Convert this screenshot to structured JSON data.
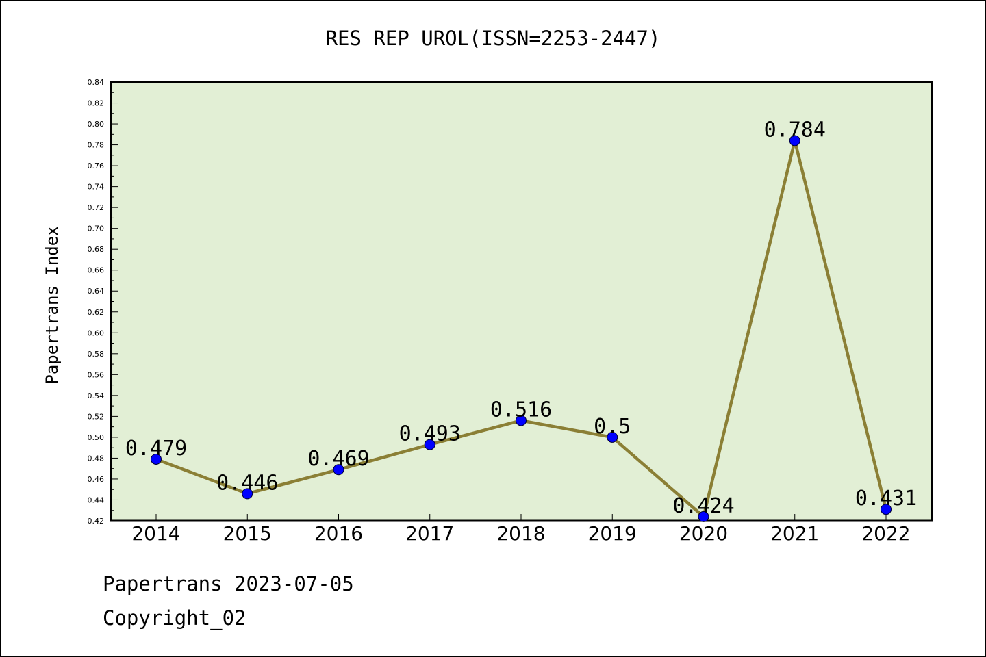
{
  "chart_data": {
    "type": "line",
    "title": "RES REP UROL(ISSN=2253-2447)",
    "ylabel": "Papertrans Index",
    "xlabel": "",
    "categories": [
      "2014",
      "2015",
      "2016",
      "2017",
      "2018",
      "2019",
      "2020",
      "2021",
      "2022"
    ],
    "values": [
      0.479,
      0.446,
      0.469,
      0.493,
      0.516,
      0.5,
      0.424,
      0.784,
      0.431
    ],
    "value_labels": [
      "0.479",
      "0.446",
      "0.469",
      "0.493",
      "0.516",
      "0.5",
      "0.424",
      "0.784",
      "0.431"
    ],
    "ylim": [
      0.42,
      0.84
    ],
    "yticks": [
      "0.42",
      "0.44",
      "0.46",
      "0.48",
      "0.50",
      "0.52",
      "0.54",
      "0.56",
      "0.58",
      "0.60",
      "0.62",
      "0.64",
      "0.66",
      "0.68",
      "0.70",
      "0.72",
      "0.74",
      "0.76",
      "0.78",
      "0.80",
      "0.82",
      "0.84"
    ],
    "grid": false,
    "colors": {
      "plot_background": "#e2efd5",
      "line": "#8b7f35",
      "marker": "#0000ff"
    }
  },
  "footer": {
    "line1": "Papertrans 2023-07-05",
    "line2": "Copyright_02"
  }
}
